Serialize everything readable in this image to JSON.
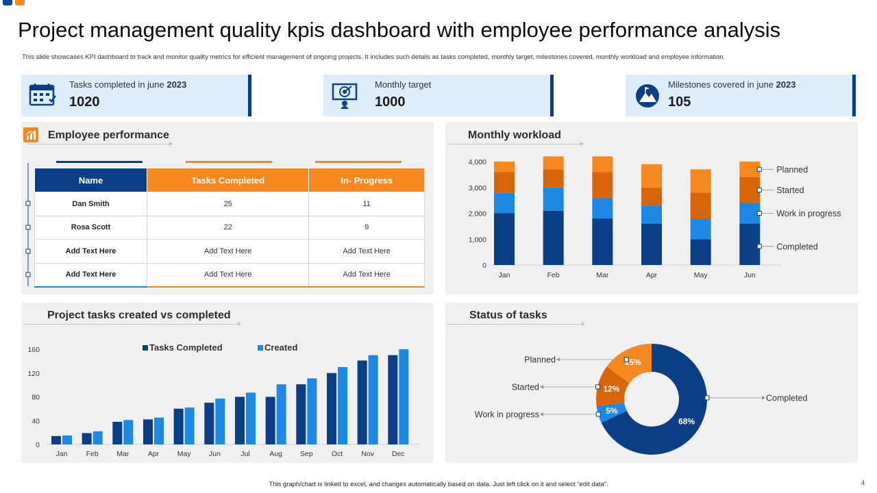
{
  "header": {
    "title": "Project management quality kpis dashboard with employee performance analysis",
    "subtitle": "This slide showcases KPI dashboard to track and monitor quality metrics for efficient management of ongoing projects. It includes such details as tasks completed, monthly target, milestones covered, monthly workload and employee information."
  },
  "kpis": {
    "tasks": {
      "label_prefix": "Tasks completed in june",
      "label_year": "2023",
      "value": "1020",
      "icon": "calendar-tasks-icon"
    },
    "target": {
      "label": "Monthly target",
      "value": "1000",
      "icon": "presentation-target-icon"
    },
    "milestones": {
      "label_prefix": "Milestones covered  in june",
      "label_year": "2023",
      "value": "105",
      "icon": "mountain-flag-icon"
    }
  },
  "employee": {
    "title": "Employee performance",
    "columns": [
      "Name",
      "Tasks  Completed",
      "In- Progress"
    ],
    "rows": [
      [
        "Dan Smith",
        "25",
        "11"
      ],
      [
        "Rosa Scott",
        "22",
        "9"
      ],
      [
        "Add Text Here",
        "Add Text Here",
        "Add Text Here"
      ],
      [
        "Add Text Here",
        "Add Text Here",
        "Add Text Here"
      ]
    ]
  },
  "colors": {
    "navy": "#0a3f85",
    "blue": "#1e88e5",
    "dark_orange": "#d9650a",
    "orange": "#f5891f",
    "panel": "#f0f0f0"
  },
  "chart_data": [
    {
      "id": "monthly-workload",
      "type": "bar",
      "stacked": true,
      "title": "Monthly workload",
      "categories": [
        "Jan",
        "Feb",
        "Mar",
        "Apr",
        "May",
        "Jun"
      ],
      "series": [
        {
          "name": "Completed",
          "values": [
            2000,
            2100,
            1800,
            1600,
            1000,
            1600
          ]
        },
        {
          "name": "Work in progress",
          "values": [
            800,
            900,
            800,
            700,
            800,
            800
          ]
        },
        {
          "name": "Started",
          "values": [
            800,
            700,
            1000,
            700,
            1000,
            1000
          ]
        },
        {
          "name": "Planned",
          "values": [
            400,
            500,
            600,
            900,
            900,
            600
          ]
        }
      ],
      "y_ticks": [
        "0",
        "1,000",
        "2,000",
        "3,000",
        "4,000"
      ],
      "ylim": [
        0,
        4000
      ],
      "legend": "right"
    },
    {
      "id": "tasks-created-vs-completed",
      "type": "bar",
      "title": "Project tasks created vs completed",
      "categories": [
        "Jan",
        "Feb",
        "Mar",
        "Apr",
        "May",
        "Jun",
        "Jul",
        "Aug",
        "Sep",
        "Oct",
        "Nov",
        "Dec"
      ],
      "series": [
        {
          "name": "Tasks  Completed",
          "values": [
            14,
            19,
            38,
            42,
            60,
            70,
            80,
            80,
            101,
            120,
            141,
            150
          ]
        },
        {
          "name": "Created",
          "values": [
            15,
            22,
            41,
            45,
            62,
            77,
            87,
            101,
            111,
            130,
            150,
            160
          ]
        }
      ],
      "y_ticks": [
        "0",
        "40",
        "80",
        "120",
        "160"
      ],
      "ylim": [
        0,
        160
      ],
      "legend": "top"
    },
    {
      "id": "status-of-tasks",
      "type": "pie",
      "donut": true,
      "title": "Status of tasks",
      "slices": [
        {
          "name": "Completed",
          "value": 68,
          "label": "68%"
        },
        {
          "name": "Work in progress",
          "value": 5,
          "label": "5%"
        },
        {
          "name": "Started",
          "value": 12,
          "label": "12%"
        },
        {
          "name": "Planned",
          "value": 15,
          "label": "15%"
        }
      ]
    }
  ],
  "footer": {
    "note": "This graph/chart is linked to excel, and changes automatically based on data. Just left click on it and select “edit data”.",
    "page": "4"
  }
}
